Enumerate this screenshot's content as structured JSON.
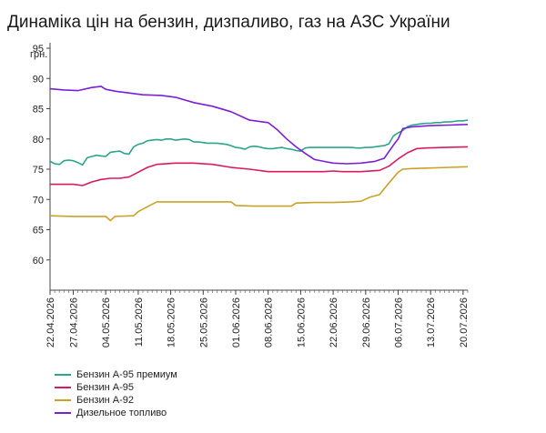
{
  "title": "Динаміка цін на бензин, дизпаливо, газ на АЗС України",
  "chart_data": {
    "type": "line",
    "ylabel": "грн.",
    "ylim": [
      55,
      95
    ],
    "yticks": [
      60,
      65,
      70,
      75,
      80,
      85,
      90,
      95
    ],
    "grid": false,
    "legend": "bottom-left",
    "x_tick_labels": [
      "22.04.2026",
      "27.04.2026",
      "04.05.2026",
      "11.05.2026",
      "18.05.2026",
      "25.05.2026",
      "01.06.2026",
      "08.06.2026",
      "15.06.2026",
      "22.06.2026",
      "29.06.2026",
      "06.07.2026",
      "13.07.2026",
      "20.07.2026"
    ],
    "x_tick_days": [
      0,
      5,
      12,
      19,
      26,
      33,
      40,
      47,
      54,
      61,
      68,
      75,
      82,
      89
    ],
    "series": [
      {
        "name": "Бензин А-95 премиум",
        "color": "#2aa68a",
        "points": [
          [
            0,
            76.3
          ],
          [
            1,
            75.9
          ],
          [
            2,
            75.8
          ],
          [
            3,
            76.4
          ],
          [
            4,
            76.5
          ],
          [
            5,
            76.4
          ],
          [
            6,
            76.1
          ],
          [
            7,
            75.7
          ],
          [
            8,
            76.9
          ],
          [
            9,
            77.1
          ],
          [
            10,
            77.3
          ],
          [
            11,
            77.2
          ],
          [
            12,
            77.1
          ],
          [
            13,
            77.8
          ],
          [
            14,
            77.9
          ],
          [
            15,
            78.0
          ],
          [
            16,
            77.6
          ],
          [
            17,
            77.5
          ],
          [
            18,
            78.7
          ],
          [
            19,
            79.1
          ],
          [
            20,
            79.3
          ],
          [
            21,
            79.7
          ],
          [
            22,
            79.8
          ],
          [
            23,
            79.9
          ],
          [
            24,
            79.8
          ],
          [
            25,
            80.0
          ],
          [
            26,
            80.0
          ],
          [
            27,
            79.8
          ],
          [
            28,
            79.9
          ],
          [
            29,
            80.0
          ],
          [
            30,
            79.9
          ],
          [
            31,
            79.5
          ],
          [
            32,
            79.5
          ],
          [
            33,
            79.4
          ],
          [
            34,
            79.3
          ],
          [
            35,
            79.3
          ],
          [
            36,
            79.3
          ],
          [
            37,
            79.2
          ],
          [
            38,
            79.1
          ],
          [
            39,
            78.9
          ],
          [
            40,
            78.6
          ],
          [
            41,
            78.5
          ],
          [
            42,
            78.3
          ],
          [
            43,
            78.7
          ],
          [
            44,
            78.8
          ],
          [
            45,
            78.7
          ],
          [
            46,
            78.5
          ],
          [
            47,
            78.4
          ],
          [
            48,
            78.4
          ],
          [
            49,
            78.5
          ],
          [
            50,
            78.6
          ],
          [
            51,
            78.4
          ],
          [
            52,
            78.3
          ],
          [
            53,
            78.1
          ],
          [
            54,
            78.0
          ],
          [
            55,
            78.5
          ],
          [
            56,
            78.6
          ],
          [
            57,
            78.6
          ],
          [
            58,
            78.6
          ],
          [
            59,
            78.6
          ],
          [
            60,
            78.6
          ],
          [
            61,
            78.6
          ],
          [
            62,
            78.6
          ],
          [
            63,
            78.6
          ],
          [
            64,
            78.6
          ],
          [
            65,
            78.6
          ],
          [
            66,
            78.5
          ],
          [
            67,
            78.5
          ],
          [
            68,
            78.6
          ],
          [
            69,
            78.6
          ],
          [
            70,
            78.7
          ],
          [
            71,
            78.8
          ],
          [
            72,
            78.9
          ],
          [
            73,
            79.2
          ],
          [
            74,
            80.5
          ],
          [
            75,
            81.0
          ],
          [
            76,
            81.4
          ],
          [
            77,
            82.0
          ],
          [
            78,
            82.3
          ],
          [
            79,
            82.4
          ],
          [
            80,
            82.5
          ],
          [
            81,
            82.6
          ],
          [
            82,
            82.6
          ],
          [
            83,
            82.7
          ],
          [
            84,
            82.7
          ],
          [
            85,
            82.8
          ],
          [
            86,
            82.8
          ],
          [
            87,
            82.9
          ],
          [
            88,
            83.0
          ],
          [
            89,
            83.0
          ],
          [
            90,
            83.1
          ]
        ]
      },
      {
        "name": "Бензин А-95",
        "color": "#d81b60",
        "points": [
          [
            0,
            72.5
          ],
          [
            5,
            72.5
          ],
          [
            7,
            72.3
          ],
          [
            9,
            72.9
          ],
          [
            11,
            73.3
          ],
          [
            13,
            73.5
          ],
          [
            15,
            73.5
          ],
          [
            17,
            73.7
          ],
          [
            19,
            74.5
          ],
          [
            21,
            75.3
          ],
          [
            23,
            75.8
          ],
          [
            27,
            76.0
          ],
          [
            31,
            76.0
          ],
          [
            35,
            75.8
          ],
          [
            39,
            75.3
          ],
          [
            43,
            75.0
          ],
          [
            47,
            74.6
          ],
          [
            51,
            74.6
          ],
          [
            55,
            74.6
          ],
          [
            59,
            74.6
          ],
          [
            61,
            74.7
          ],
          [
            63,
            74.6
          ],
          [
            67,
            74.6
          ],
          [
            71,
            74.8
          ],
          [
            73,
            75.5
          ],
          [
            75,
            76.7
          ],
          [
            77,
            77.7
          ],
          [
            79,
            78.4
          ],
          [
            81,
            78.5
          ],
          [
            85,
            78.6
          ],
          [
            90,
            78.7
          ]
        ]
      },
      {
        "name": "Бензин А-92",
        "color": "#c9a227",
        "points": [
          [
            0,
            67.3
          ],
          [
            5,
            67.2
          ],
          [
            9,
            67.2
          ],
          [
            12,
            67.2
          ],
          [
            13,
            66.5
          ],
          [
            14,
            67.2
          ],
          [
            18,
            67.3
          ],
          [
            19,
            68.0
          ],
          [
            21,
            68.8
          ],
          [
            23,
            69.6
          ],
          [
            27,
            69.6
          ],
          [
            31,
            69.6
          ],
          [
            35,
            69.6
          ],
          [
            39,
            69.6
          ],
          [
            40,
            69.0
          ],
          [
            44,
            68.9
          ],
          [
            48,
            68.9
          ],
          [
            52,
            68.9
          ],
          [
            53,
            69.4
          ],
          [
            57,
            69.5
          ],
          [
            61,
            69.5
          ],
          [
            65,
            69.6
          ],
          [
            67,
            69.7
          ],
          [
            69,
            70.4
          ],
          [
            71,
            70.8
          ],
          [
            73,
            72.7
          ],
          [
            75,
            74.5
          ],
          [
            76,
            75.0
          ],
          [
            78,
            75.1
          ],
          [
            82,
            75.2
          ],
          [
            86,
            75.3
          ],
          [
            90,
            75.4
          ]
        ]
      },
      {
        "name": "Дизельное топливо",
        "color": "#7b1fd6",
        "points": [
          [
            0,
            88.3
          ],
          [
            3,
            88.1
          ],
          [
            6,
            88.0
          ],
          [
            9,
            88.5
          ],
          [
            11,
            88.7
          ],
          [
            12,
            88.2
          ],
          [
            14,
            87.9
          ],
          [
            17,
            87.6
          ],
          [
            20,
            87.3
          ],
          [
            24,
            87.2
          ],
          [
            27,
            86.9
          ],
          [
            31,
            86.0
          ],
          [
            35,
            85.4
          ],
          [
            39,
            84.5
          ],
          [
            43,
            83.1
          ],
          [
            47,
            82.7
          ],
          [
            49,
            81.5
          ],
          [
            51,
            80.0
          ],
          [
            53,
            78.7
          ],
          [
            55,
            77.6
          ],
          [
            57,
            76.6
          ],
          [
            59,
            76.3
          ],
          [
            61,
            76.0
          ],
          [
            64,
            75.9
          ],
          [
            67,
            76.0
          ],
          [
            70,
            76.3
          ],
          [
            72,
            76.8
          ],
          [
            74,
            79.0
          ],
          [
            75,
            80.0
          ],
          [
            76,
            81.7
          ],
          [
            78,
            82.0
          ],
          [
            82,
            82.2
          ],
          [
            86,
            82.3
          ],
          [
            90,
            82.4
          ]
        ]
      }
    ]
  }
}
